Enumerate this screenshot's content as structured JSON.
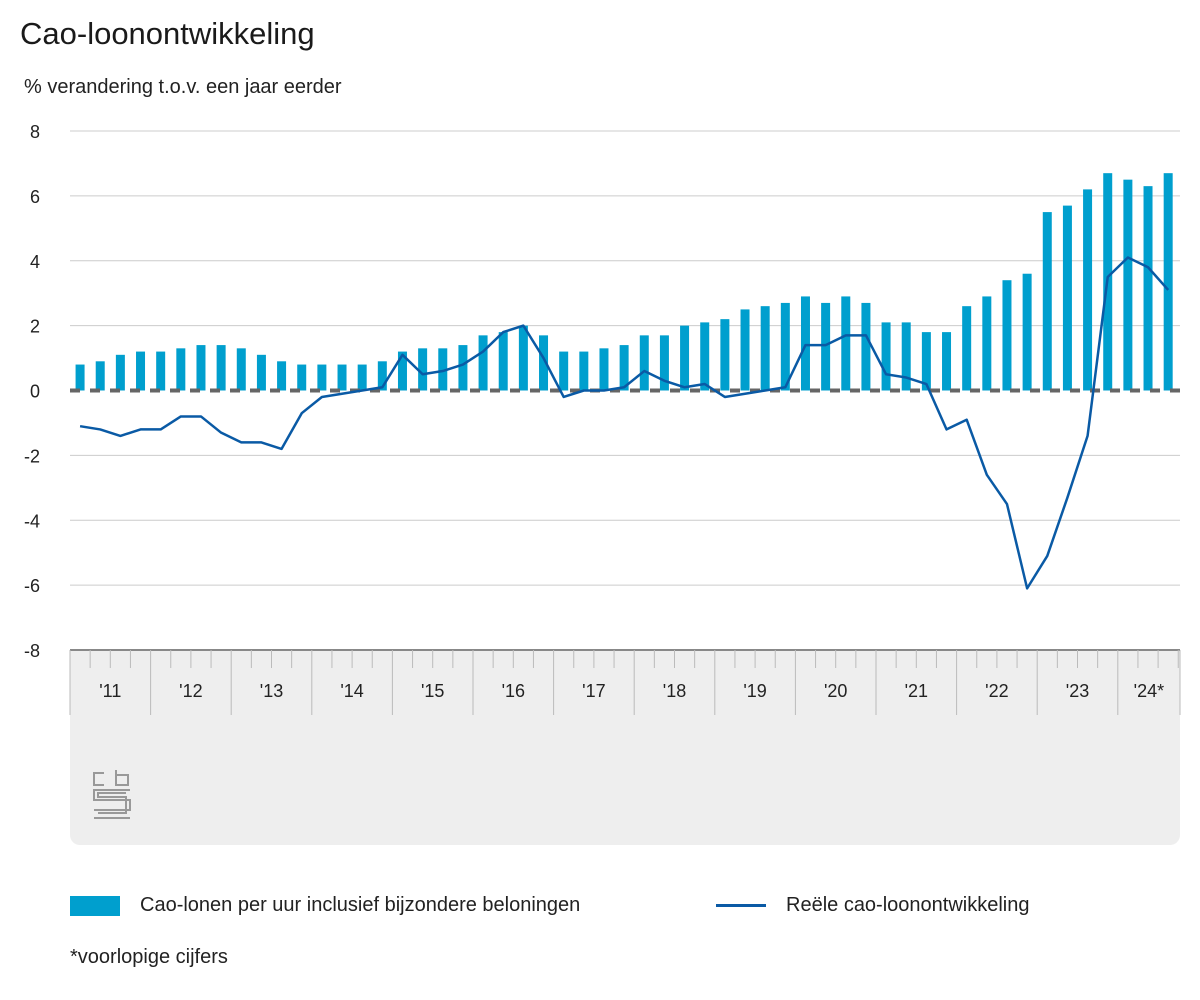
{
  "title": "Cao-loonontwikkeling",
  "subtitle": "% verandering t.o.v. een jaar eerder",
  "footnote": "*voorlopige cijfers",
  "colors": {
    "bar": "#009fce",
    "line": "#0a5aa5",
    "zero_line": "#666666",
    "grid": "#cccccc",
    "axis_band": "#eeeeee"
  },
  "logo": "CBS logo",
  "chart_data": {
    "type": "bar+line",
    "title": "Cao-loonontwikkeling",
    "ylabel": "% verandering t.o.v. een jaar eerder",
    "ylim": [
      -8,
      8
    ],
    "yticks": [
      8,
      6,
      4,
      2,
      0,
      -2,
      -4,
      -6,
      -8
    ],
    "grid": true,
    "legend_position": "bottom",
    "x_year_labels": [
      "'11",
      "'12",
      "'13",
      "'14",
      "'15",
      "'16",
      "'17",
      "'18",
      "'19",
      "'20",
      "'21",
      "'22",
      "'23",
      "'24*"
    ],
    "x_period": "quarterly, 2011 Q1 – 2024 Q3",
    "series": [
      {
        "name": "Cao-lonen per uur inclusief bijzondere beloningen",
        "type": "bar",
        "values": [
          0.8,
          0.9,
          1.1,
          1.2,
          1.2,
          1.3,
          1.4,
          1.4,
          1.3,
          1.1,
          0.9,
          0.8,
          0.8,
          0.8,
          0.8,
          0.9,
          1.2,
          1.3,
          1.3,
          1.4,
          1.7,
          1.8,
          2.0,
          1.7,
          1.2,
          1.2,
          1.3,
          1.4,
          1.7,
          1.7,
          2.0,
          2.1,
          2.2,
          2.5,
          2.6,
          2.7,
          2.9,
          2.7,
          2.9,
          2.7,
          2.1,
          2.1,
          1.8,
          1.8,
          2.6,
          2.9,
          3.4,
          3.6,
          5.5,
          5.7,
          6.2,
          6.7,
          6.5,
          6.3,
          6.7
        ]
      },
      {
        "name": "Reële cao-loonontwikkeling",
        "type": "line",
        "values": [
          -1.1,
          -1.2,
          -1.4,
          -1.2,
          -1.2,
          -0.8,
          -0.8,
          -1.3,
          -1.6,
          -1.6,
          -1.8,
          -0.7,
          -0.2,
          -0.1,
          0.0,
          0.1,
          1.1,
          0.5,
          0.6,
          0.8,
          1.2,
          1.8,
          2.0,
          1.0,
          -0.2,
          0.0,
          0.0,
          0.1,
          0.6,
          0.3,
          0.1,
          0.2,
          -0.2,
          -0.1,
          0.0,
          0.1,
          1.4,
          1.4,
          1.7,
          1.7,
          0.5,
          0.4,
          0.2,
          -1.2,
          -0.9,
          -2.6,
          -3.5,
          -6.1,
          -5.1,
          -3.3,
          -1.4,
          3.5,
          4.1,
          3.8,
          3.1
        ]
      }
    ]
  }
}
